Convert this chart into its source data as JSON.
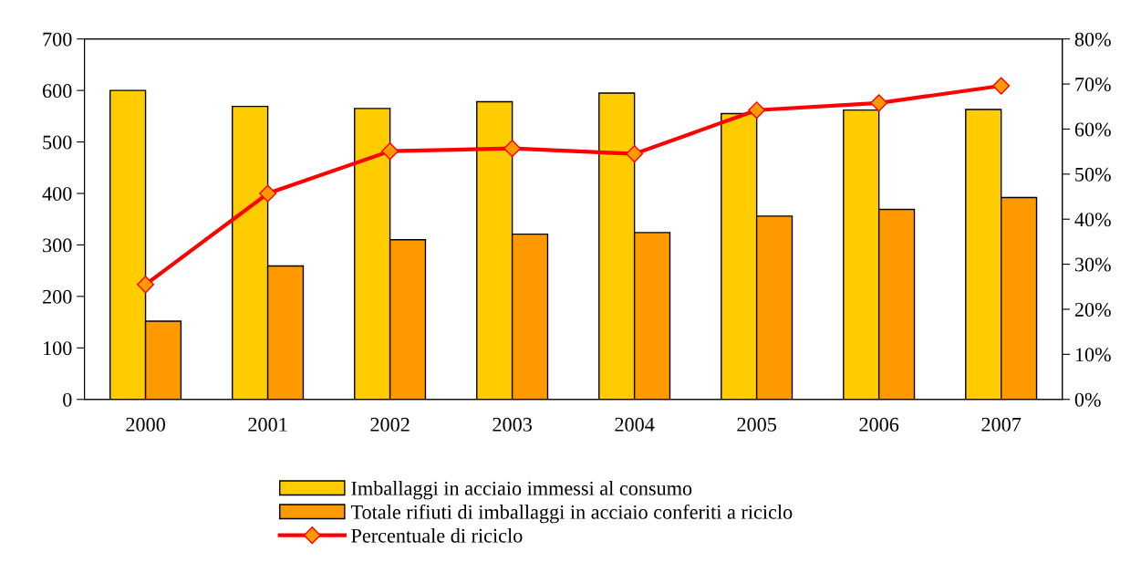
{
  "chart_data": {
    "type": "bar",
    "categories": [
      "2000",
      "2001",
      "2002",
      "2003",
      "2004",
      "2005",
      "2006",
      "2007"
    ],
    "series": [
      {
        "name": "Imballaggi in acciaio immessi al consumo",
        "color": "#ffcc00",
        "values": [
          600,
          569,
          565,
          578,
          595,
          555,
          562,
          563
        ]
      },
      {
        "name": "Totale rifiuti di imballaggi in acciaio conferiti a riciclo",
        "color": "#ff9900",
        "values": [
          152,
          259,
          310,
          321,
          324,
          356,
          369,
          392
        ]
      },
      {
        "name": "Percentuale di riciclo",
        "type": "line",
        "axis": "y2",
        "color": "#ff0000",
        "values": [
          25.5,
          45.7,
          55.1,
          55.7,
          54.5,
          64.2,
          65.8,
          69.6
        ]
      }
    ],
    "ylim": [
      0,
      700
    ],
    "yticks": [
      0,
      100,
      200,
      300,
      400,
      500,
      600,
      700
    ],
    "y2lim": [
      0,
      80
    ],
    "y2ticks": [
      {
        "value": 0,
        "label": "0%"
      },
      {
        "value": 10,
        "label": "10%"
      },
      {
        "value": 20,
        "label": "20%"
      },
      {
        "value": 30,
        "label": "30%"
      },
      {
        "value": 40,
        "label": "40%"
      },
      {
        "value": 50,
        "label": "50%"
      },
      {
        "value": 60,
        "label": "60%"
      },
      {
        "value": 70,
        "label": "70%"
      },
      {
        "value": 80,
        "label": "80%"
      }
    ],
    "marker": "diamond",
    "line_style": "solid",
    "grid": false,
    "legend": "bottom"
  }
}
